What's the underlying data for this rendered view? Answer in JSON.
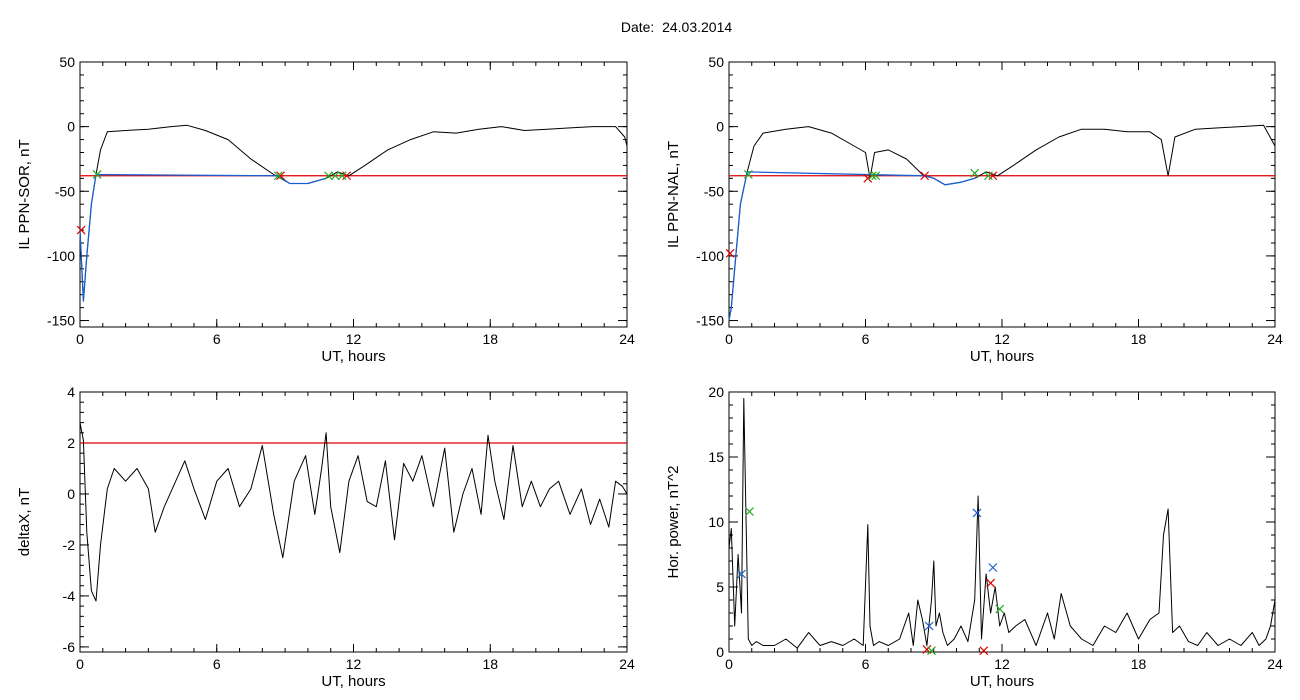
{
  "figure": {
    "title": "Date:  24.03.2014"
  },
  "colors": {
    "trace": "#000000",
    "threshold": "#dd0000",
    "segment": "#1a5fd0",
    "marker_red": "#dd0000",
    "marker_green": "#22aa22",
    "marker_blue": "#1a5fd0"
  },
  "chart_data": [
    {
      "type": "line",
      "ylabel": "IL PPN-SOR, nT",
      "xlabel": "UT, hours",
      "xlim": [
        0,
        24
      ],
      "ylim": [
        -155,
        50
      ],
      "xticks": [
        "0",
        "6",
        "12",
        "18",
        "24"
      ],
      "yticks": [
        "-150",
        "-100",
        "-50",
        "0",
        "50"
      ],
      "threshold": -38,
      "series": [
        {
          "role": "trace",
          "x": [
            0,
            0.15,
            0.3,
            0.5,
            0.7,
            0.9,
            1.2,
            2,
            3,
            4,
            4.7,
            5.5,
            6.5,
            7.5,
            8.5,
            9.2,
            10,
            10.8,
            11.3,
            11.8,
            12.5,
            13.5,
            14.5,
            15.5,
            16.5,
            17.5,
            18.5,
            19.5,
            20.5,
            21.5,
            22.5,
            23.5,
            23.9,
            24
          ],
          "y": [
            -80,
            -135,
            -100,
            -60,
            -37,
            -18,
            -4,
            -3,
            -2,
            0,
            1,
            -3,
            -10,
            -25,
            -37,
            -44,
            -44,
            -40,
            -35,
            -38,
            -30,
            -18,
            -10,
            -4,
            -5,
            -2,
            0,
            -3,
            -2,
            -1,
            0,
            0,
            -8,
            -15
          ]
        },
        {
          "role": "segment",
          "x": [
            0,
            0.15,
            0.3,
            0.5,
            0.7,
            8.7,
            9.2,
            10,
            10.8
          ],
          "y": [
            -80,
            -135,
            -100,
            -60,
            -37,
            -38,
            -44,
            -44,
            -40
          ]
        },
        {
          "role": "markers-red",
          "x": [
            0.05,
            8.8,
            11.7
          ],
          "y": [
            -80,
            -38,
            -38
          ]
        },
        {
          "role": "markers-green",
          "x": [
            0.75,
            8.7,
            10.9,
            11.2,
            11.5
          ],
          "y": [
            -37,
            -38,
            -38,
            -38,
            -38
          ]
        }
      ]
    },
    {
      "type": "line",
      "ylabel": "IL PPN-NAL, nT",
      "xlabel": "UT, hours",
      "xlim": [
        0,
        24
      ],
      "ylim": [
        -155,
        50
      ],
      "xticks": [
        "0",
        "6",
        "12",
        "18",
        "24"
      ],
      "yticks": [
        "-150",
        "-100",
        "-50",
        "0",
        "50"
      ],
      "threshold": -38,
      "series": [
        {
          "role": "trace",
          "x": [
            0,
            0.1,
            0.3,
            0.5,
            0.8,
            1.1,
            1.5,
            2.5,
            3.5,
            4.5,
            5.5,
            6,
            6.2,
            6.4,
            7,
            7.8,
            8.5,
            9,
            9.5,
            10.2,
            10.8,
            11.3,
            11.8,
            12.5,
            13.5,
            14.5,
            15.5,
            16.5,
            17.5,
            18.5,
            19,
            19.3,
            19.6,
            20.5,
            21.5,
            22.5,
            23.5,
            24
          ],
          "y": [
            -150,
            -140,
            -100,
            -60,
            -35,
            -15,
            -5,
            -2,
            0,
            -5,
            -15,
            -20,
            -40,
            -20,
            -18,
            -25,
            -37,
            -40,
            -45,
            -43,
            -40,
            -35,
            -38,
            -30,
            -18,
            -8,
            -2,
            -2,
            -4,
            -4,
            -10,
            -38,
            -8,
            -2,
            -1,
            0,
            1,
            -15
          ]
        },
        {
          "role": "segment",
          "x": [
            0,
            0.1,
            0.3,
            0.5,
            0.8,
            8.6,
            9.0,
            9.5,
            10.2,
            10.8
          ],
          "y": [
            -150,
            -140,
            -100,
            -60,
            -35,
            -38,
            -40,
            -45,
            -43,
            -40
          ]
        },
        {
          "role": "markers-red",
          "x": [
            0.05,
            6.1,
            8.6,
            11.6
          ],
          "y": [
            -98,
            -40,
            -38,
            -38
          ]
        },
        {
          "role": "markers-green",
          "x": [
            0.85,
            6.3,
            6.45,
            10.8,
            11.4
          ],
          "y": [
            -37,
            -38,
            -38,
            -36,
            -38
          ]
        }
      ]
    },
    {
      "type": "line",
      "ylabel": "deltaX, nT",
      "xlabel": "UT, hours",
      "xlim": [
        0,
        24
      ],
      "ylim": [
        -6.2,
        4
      ],
      "xticks": [
        "0",
        "6",
        "12",
        "18",
        "24"
      ],
      "yticks": [
        "-6",
        "-4",
        "-2",
        "0",
        "2",
        "4"
      ],
      "threshold": 2,
      "series": [
        {
          "role": "trace",
          "x": [
            0,
            0.15,
            0.3,
            0.5,
            0.7,
            0.9,
            1.2,
            1.5,
            2,
            2.5,
            3,
            3.3,
            3.7,
            4.2,
            4.6,
            5,
            5.5,
            6,
            6.5,
            7,
            7.5,
            8,
            8.5,
            8.9,
            9.4,
            9.9,
            10.3,
            10.6,
            10.8,
            11,
            11.4,
            11.8,
            12.2,
            12.6,
            13,
            13.4,
            13.8,
            14.2,
            14.6,
            15,
            15.5,
            16,
            16.4,
            16.8,
            17.2,
            17.6,
            17.9,
            18.2,
            18.6,
            19,
            19.4,
            19.8,
            20.2,
            20.6,
            21,
            21.5,
            22,
            22.4,
            22.8,
            23.2,
            23.5,
            23.8,
            24
          ],
          "y": [
            2.8,
            2.1,
            -1.5,
            -3.8,
            -4.2,
            -2,
            0.2,
            1,
            0.5,
            1,
            0.2,
            -1.5,
            -0.5,
            0.5,
            1.3,
            0.2,
            -1,
            0.5,
            1,
            -0.5,
            0.2,
            1.9,
            -0.8,
            -2.5,
            0.5,
            1.5,
            -0.8,
            1,
            2.4,
            -0.5,
            -2.3,
            0.5,
            1.5,
            -0.3,
            -0.5,
            1.3,
            -1.8,
            1.2,
            0.5,
            1.5,
            -0.5,
            1.8,
            -1.5,
            0,
            1,
            -0.8,
            2.3,
            0.5,
            -1,
            1.9,
            -0.5,
            0.5,
            -0.5,
            0.2,
            0.5,
            -0.8,
            0.2,
            -1.2,
            -0.2,
            -1.3,
            0.5,
            0.3,
            0
          ]
        }
      ]
    },
    {
      "type": "line",
      "ylabel": "Hor. power, nT^2",
      "xlabel": "UT, hours",
      "xlim": [
        0,
        24
      ],
      "ylim": [
        0,
        20
      ],
      "xticks": [
        "0",
        "6",
        "12",
        "18",
        "24"
      ],
      "yticks": [
        "0",
        "5",
        "10",
        "15",
        "20"
      ],
      "series": [
        {
          "role": "trace",
          "x": [
            0,
            0.1,
            0.25,
            0.4,
            0.55,
            0.65,
            0.75,
            0.85,
            1,
            1.2,
            1.5,
            2,
            2.5,
            3,
            3.5,
            4,
            4.5,
            5,
            5.5,
            5.9,
            6.1,
            6.2,
            6.35,
            6.6,
            7,
            7.5,
            7.9,
            8.1,
            8.3,
            8.5,
            8.7,
            8.9,
            9,
            9.1,
            9.25,
            9.4,
            9.6,
            9.9,
            10.2,
            10.5,
            10.8,
            10.95,
            11.1,
            11.3,
            11.5,
            11.7,
            11.9,
            12.1,
            12.3,
            12.6,
            13,
            13.5,
            14,
            14.3,
            14.6,
            15,
            15.5,
            16,
            16.5,
            17,
            17.5,
            18,
            18.5,
            18.9,
            19.1,
            19.3,
            19.5,
            19.8,
            20.2,
            20.6,
            21,
            21.5,
            22,
            22.5,
            23,
            23.3,
            23.6,
            23.8,
            24
          ],
          "y": [
            8,
            9.5,
            2,
            7.5,
            3,
            19.5,
            10,
            1,
            0.5,
            0.8,
            0.5,
            0.5,
            1,
            0.3,
            1.5,
            0.5,
            0.8,
            0.5,
            1,
            0.5,
            9.8,
            2,
            0.5,
            0.8,
            0.5,
            1,
            3,
            0.5,
            4,
            2.5,
            0.5,
            4,
            7,
            2,
            3,
            1.5,
            0.5,
            1,
            2,
            0.8,
            4,
            12,
            1,
            6,
            3,
            5,
            2,
            3,
            1.5,
            2,
            2.5,
            0.5,
            3,
            1,
            4.5,
            2,
            1,
            0.5,
            2,
            1.5,
            3,
            1,
            2.5,
            3,
            9,
            11,
            1.5,
            2,
            0.8,
            0.5,
            1.5,
            0.5,
            1,
            0.5,
            1.5,
            0.5,
            1,
            2,
            4
          ]
        },
        {
          "role": "markers-red",
          "x": [
            8.7,
            11.5,
            11.2
          ],
          "y": [
            0.2,
            5.3,
            0.1
          ]
        },
        {
          "role": "markers-green",
          "x": [
            0.9,
            8.9,
            11.9
          ],
          "y": [
            10.8,
            0.1,
            3.3
          ]
        },
        {
          "role": "markers-blue",
          "x": [
            0.55,
            8.8,
            10.9,
            11.6
          ],
          "y": [
            6,
            2,
            10.7,
            6.5
          ]
        }
      ]
    }
  ]
}
